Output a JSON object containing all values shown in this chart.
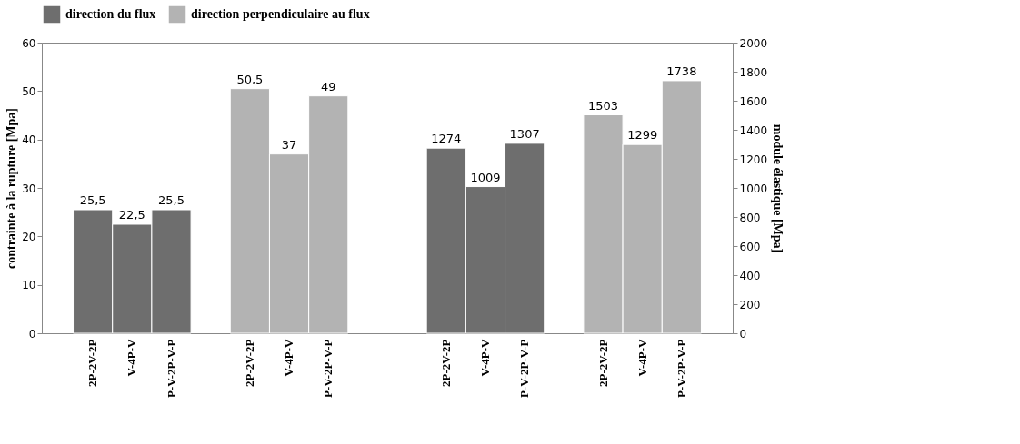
{
  "chart_data": {
    "type": "bar",
    "ylabel": "contrainte à la rupture [Mpa]",
    "y2label": "module élastique  [Mpa]",
    "categories": [
      "2P-2V-2P",
      "V-4P-V",
      "P-V-2P-V-P",
      null,
      "2P-2V-2P",
      "V-4P-V",
      "P-V-2P-V-P",
      null,
      null,
      "2P-2V-2P",
      "V-4P-V",
      "P-V-2P-V-P",
      null,
      "2P-2V-2P",
      "V-4P-V",
      "P-V-2P-V-P"
    ],
    "series": [
      {
        "name": "direction du flux",
        "color": "#6e6e6e",
        "values": [
          25.5,
          22.5,
          25.5,
          null,
          null,
          null,
          null,
          null,
          null,
          null,
          null,
          null,
          null,
          null,
          null,
          null
        ],
        "value_labels": [
          "25,5",
          "22,5",
          "25,5",
          null,
          null,
          null,
          null,
          null,
          null,
          null,
          null,
          null,
          null,
          null,
          null,
          null
        ]
      },
      {
        "name": "direction perpendiculaire au flux",
        "color": "#b3b3b3",
        "values": [
          null,
          null,
          null,
          null,
          50.5,
          37,
          49,
          null,
          null,
          null,
          null,
          null,
          null,
          null,
          null,
          null
        ],
        "value_labels": [
          null,
          null,
          null,
          null,
          "50,5",
          "37",
          "49",
          null,
          null,
          null,
          null,
          null,
          null,
          null,
          null,
          null
        ]
      },
      {
        "color": "#6e6e6e",
        "axis": "y2",
        "values": [
          null,
          null,
          null,
          null,
          null,
          null,
          null,
          null,
          null,
          1274,
          1009,
          1307,
          null,
          null,
          null,
          null
        ],
        "value_labels": [
          null,
          null,
          null,
          null,
          null,
          null,
          null,
          null,
          null,
          "1274",
          "1009",
          "1307",
          null,
          null,
          null,
          null
        ]
      },
      {
        "color": "#b3b3b3",
        "axis": "y2",
        "values": [
          null,
          null,
          null,
          null,
          null,
          null,
          null,
          null,
          null,
          null,
          null,
          null,
          null,
          1503,
          1299,
          1738
        ],
        "value_labels": [
          null,
          null,
          null,
          null,
          null,
          null,
          null,
          null,
          null,
          null,
          null,
          null,
          null,
          "1503",
          "1299",
          "1738"
        ]
      }
    ],
    "ylim": [
      0,
      60
    ],
    "yticks": [
      0,
      10,
      20,
      30,
      40,
      50,
      60
    ],
    "y2lim": [
      0,
      2000
    ],
    "y2ticks": [
      0,
      200,
      400,
      600,
      800,
      1000,
      1200,
      1400,
      1600,
      1800,
      2000
    ],
    "legend": "top",
    "grid": false
  }
}
